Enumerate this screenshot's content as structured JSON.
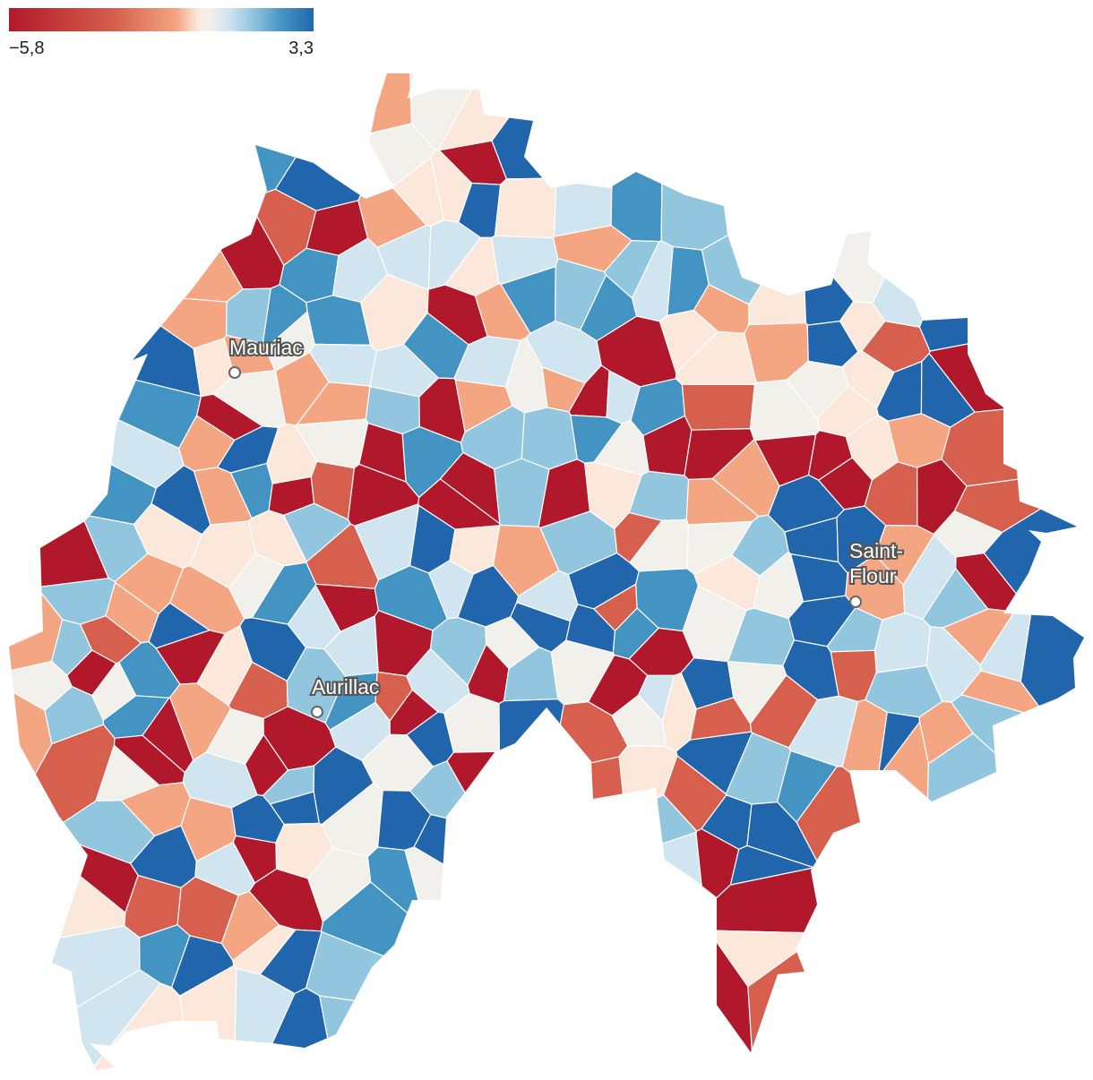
{
  "legend": {
    "min_label": "−5,8",
    "max_label": "3,3",
    "colors": [
      "#b2182b",
      "#d6604d",
      "#f4a582",
      "#fbe8db",
      "#f2f0ea",
      "#d1e5f0",
      "#92c5de",
      "#4393c3",
      "#2166ac"
    ]
  },
  "cities": [
    {
      "name": "Mauriac",
      "lines": [
        "Mauriac"
      ]
    },
    {
      "name": "Aurillac",
      "lines": [
        "Aurillac"
      ]
    },
    {
      "name": "Saint-Flour",
      "lines": [
        "Saint-",
        "Flour"
      ]
    }
  ]
}
